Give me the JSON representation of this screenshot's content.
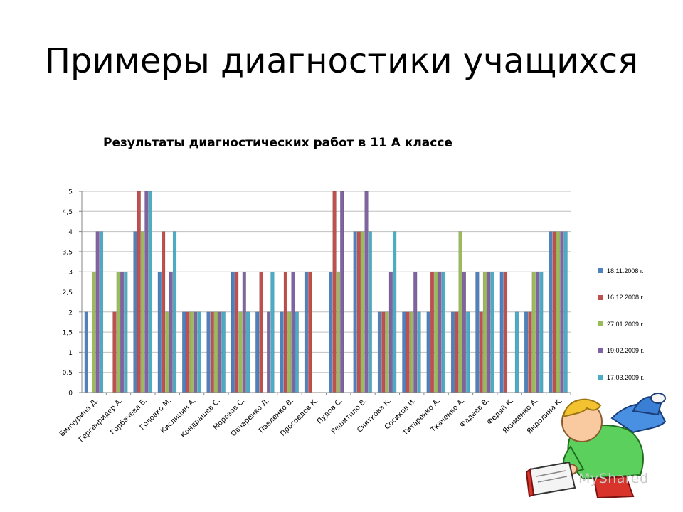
{
  "slide": {
    "title": "Примеры диагностики учащихся",
    "watermark": "MyShared"
  },
  "colors": {
    "series": [
      "#4f81bd",
      "#c0504d",
      "#9bbb59",
      "#8064a2",
      "#4bacc6"
    ],
    "grid": "#bfbfbf",
    "axis": "#868686"
  },
  "chart_data": {
    "type": "bar",
    "title": "Результаты диагностических работ в 11 А классе",
    "ylim": [
      0,
      5
    ],
    "yticks": [
      "0",
      "0,5",
      "1",
      "1,5",
      "2",
      "2,5",
      "3",
      "3,5",
      "4",
      "4,5",
      "5"
    ],
    "grid": true,
    "legend_position": "right",
    "categories": [
      "Бинчурина Д.",
      "Гергенридер А.",
      "Горбачева Е.",
      "Головко М.",
      "Кислицин А.",
      "Кондрашев С.",
      "Морозов С.",
      "Овчаренко Л.",
      "Павленко В.",
      "Просоедов К.",
      "Пудов С.",
      "Решитило В.",
      "Сняткова К.",
      "Сосиков И.",
      "Титаренко А.",
      "Ткаченко А.",
      "Фадеев В.",
      "Федяй К.",
      "Якименко А.",
      "Яндолина К."
    ],
    "series": [
      {
        "name": "18.11.2008 г.",
        "values": [
          2,
          0,
          4,
          3,
          2,
          2,
          3,
          2,
          2,
          3,
          3,
          4,
          2,
          2,
          2,
          2,
          3,
          3,
          2,
          4
        ]
      },
      {
        "name": "16.12.2008 г.",
        "values": [
          0,
          2,
          5,
          4,
          2,
          2,
          3,
          3,
          3,
          3,
          5,
          4,
          2,
          2,
          3,
          2,
          2,
          3,
          2,
          4
        ]
      },
      {
        "name": "27.01.2009 г.",
        "values": [
          3,
          3,
          4,
          2,
          2,
          2,
          2,
          0,
          2,
          0,
          3,
          4,
          2,
          2,
          3,
          4,
          3,
          0,
          3,
          4
        ]
      },
      {
        "name": "19.02.2009 г.",
        "values": [
          4,
          3,
          5,
          3,
          2,
          2,
          3,
          2,
          3,
          0,
          5,
          5,
          3,
          3,
          3,
          3,
          3,
          0,
          3,
          4
        ]
      },
      {
        "name": "17.03.2009 г.",
        "values": [
          4,
          3,
          5,
          4,
          2,
          2,
          2,
          3,
          2,
          0,
          0,
          4,
          4,
          2,
          3,
          2,
          3,
          2,
          3,
          4
        ]
      }
    ]
  }
}
